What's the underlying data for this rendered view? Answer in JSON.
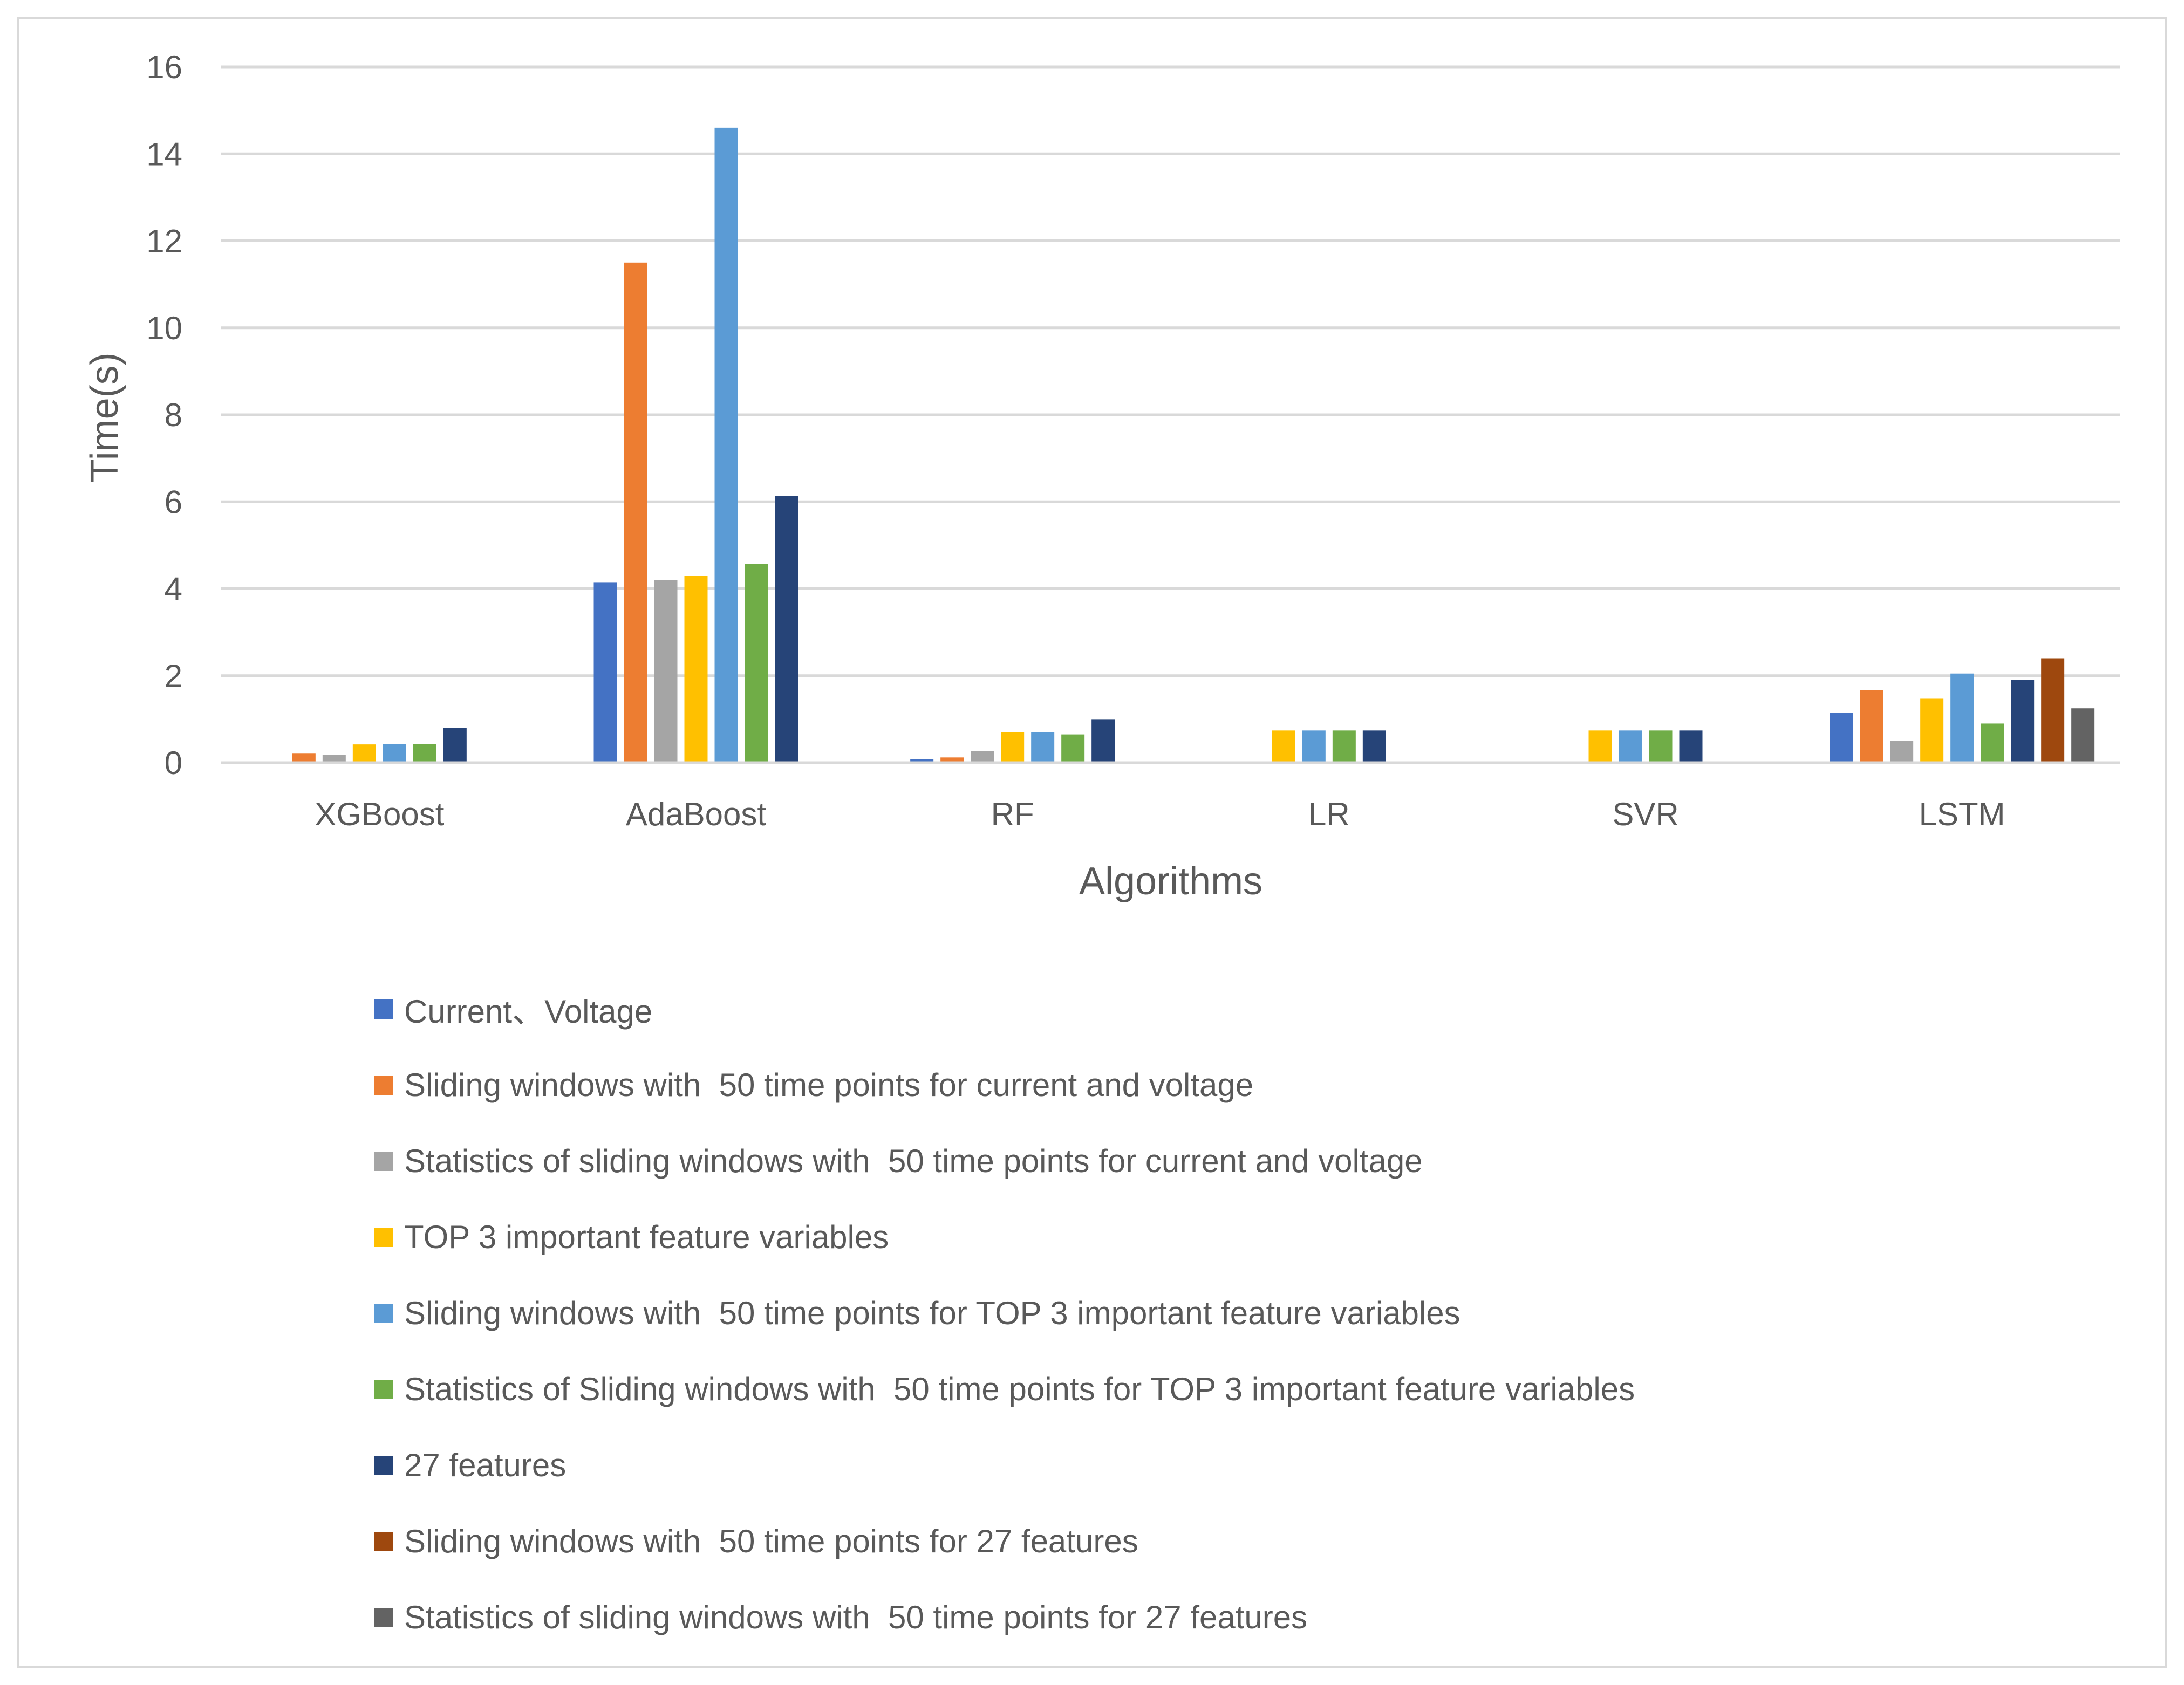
{
  "chart_data": {
    "type": "bar",
    "title": "",
    "xlabel": "Algorithms",
    "ylabel": "Time(s)",
    "ylim": [
      0,
      16
    ],
    "yticks": [
      "0",
      "2",
      "4",
      "6",
      "8",
      "10",
      "12",
      "14",
      "16"
    ],
    "grid": true,
    "legend_position": "bottom",
    "categories": [
      "XGBoost",
      "AdaBoost",
      "RF",
      "LR",
      "SVR",
      "LSTM"
    ],
    "series": [
      {
        "name": "Current、Voltage",
        "color": "#4472c4",
        "values": [
          null,
          4.15,
          0.08,
          null,
          null,
          1.15
        ]
      },
      {
        "name": "Sliding windows with  50 time points for current and voltage",
        "color": "#ed7d31",
        "values": [
          0.22,
          11.5,
          0.12,
          null,
          null,
          1.67
        ]
      },
      {
        "name": "Statistics of sliding windows with  50 time points for current and voltage",
        "color": "#a5a5a5",
        "values": [
          0.18,
          4.2,
          0.27,
          null,
          null,
          0.5
        ]
      },
      {
        "name": "TOP 3 important feature variables",
        "color": "#ffc000",
        "values": [
          0.42,
          4.3,
          0.7,
          0.74,
          0.74,
          1.47
        ]
      },
      {
        "name": "Sliding windows with  50 time points for TOP 3 important feature variables",
        "color": "#5b9bd5",
        "values": [
          0.43,
          14.6,
          0.7,
          0.74,
          0.74,
          2.05
        ]
      },
      {
        "name": "Statistics of Sliding windows with  50 time points for TOP 3 important feature variables",
        "color": "#70ad47",
        "values": [
          0.43,
          4.57,
          0.65,
          0.74,
          0.74,
          0.9
        ]
      },
      {
        "name": "27 features",
        "color": "#264478",
        "values": [
          0.8,
          6.13,
          1.0,
          0.74,
          0.74,
          1.9
        ]
      },
      {
        "name": "Sliding windows with  50 time points for 27 features",
        "color": "#9e480e",
        "values": [
          null,
          null,
          null,
          null,
          null,
          2.4
        ]
      },
      {
        "name": "Statistics of sliding windows with  50 time points for 27 features",
        "color": "#636363",
        "values": [
          null,
          null,
          null,
          null,
          null,
          1.25
        ]
      }
    ]
  }
}
